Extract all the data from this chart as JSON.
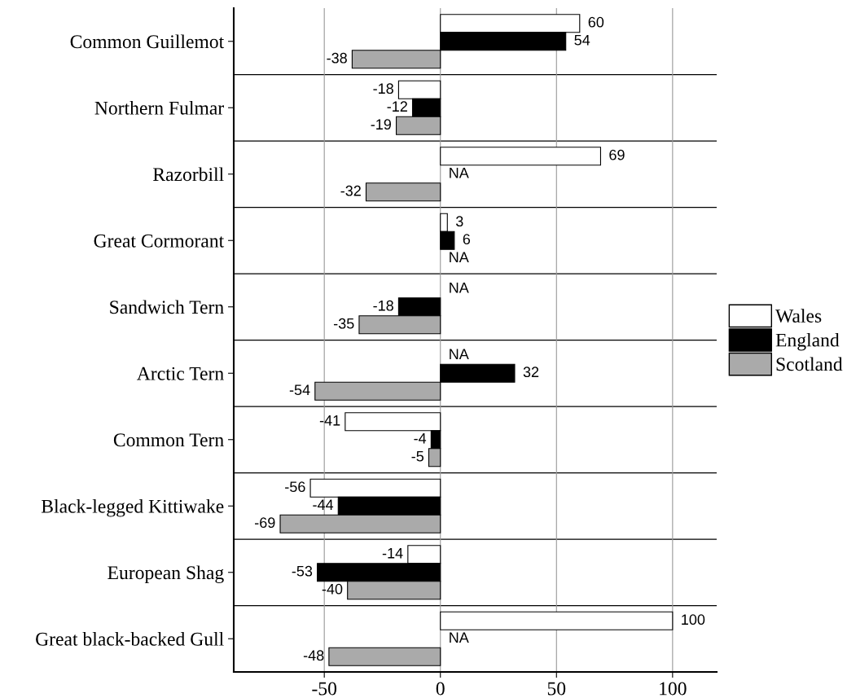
{
  "chart_data": {
    "type": "bar",
    "orientation": "horizontal",
    "categories": [
      "Common Guillemot",
      "Northern Fulmar",
      "Razorbill",
      "Great Cormorant",
      "Sandwich Tern",
      "Arctic Tern",
      "Common Tern",
      "Black-legged Kittiwake",
      "European Shag",
      "Great black-backed Gull"
    ],
    "series": [
      {
        "name": "Wales",
        "color": "#ffffff",
        "values": [
          60,
          -18,
          69,
          3,
          null,
          null,
          -41,
          -56,
          -14,
          100
        ],
        "value_labels": [
          "60",
          "-18",
          "69",
          "3",
          "NA",
          "NA",
          "-41",
          "-56",
          "-14",
          "100"
        ]
      },
      {
        "name": "England",
        "color": "#000000",
        "values": [
          54,
          -12,
          null,
          6,
          -18,
          32,
          -4,
          -44,
          -53,
          null
        ],
        "value_labels": [
          "54",
          "-12",
          "NA",
          "6",
          "-18",
          "32",
          "-4",
          "-44",
          "-53",
          "NA"
        ]
      },
      {
        "name": "Scotland",
        "color": "#aaaaaa",
        "values": [
          -38,
          -19,
          -32,
          null,
          -35,
          -54,
          -5,
          -69,
          -40,
          -48
        ],
        "value_labels": [
          "-38",
          "-19",
          "-32",
          "NA",
          "-35",
          "-54",
          "-5",
          "-69",
          "-40",
          "-48"
        ]
      }
    ],
    "xlim": [
      -89,
      119
    ],
    "xticks": [
      -50,
      0,
      50,
      100
    ],
    "grid": true,
    "legend": "right"
  }
}
